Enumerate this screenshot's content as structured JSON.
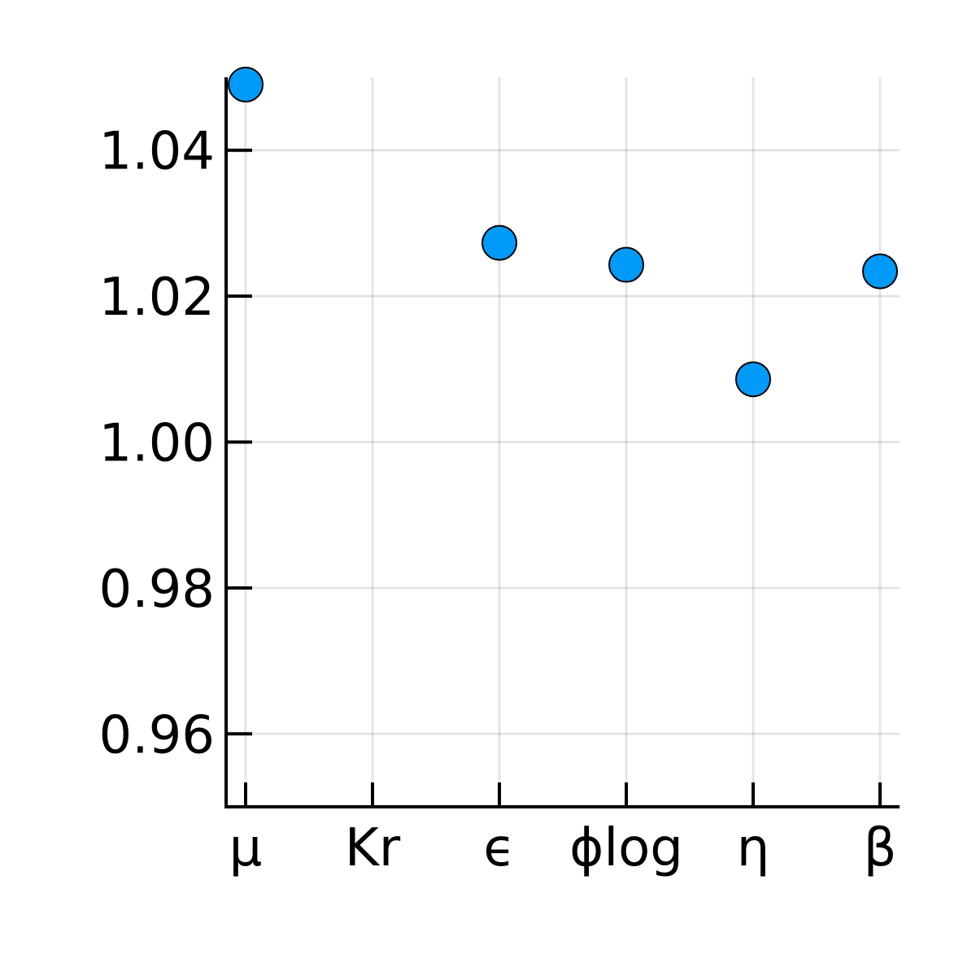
{
  "chart_data": {
    "type": "scatter",
    "title": "",
    "xlabel": "",
    "ylabel": "",
    "categories": [
      "μ",
      "Kr",
      "ϵ",
      "ϕlog",
      "η",
      "β"
    ],
    "series": [
      {
        "values": [
          1.049,
          null,
          1.0273,
          1.0243,
          1.0086,
          1.0234
        ],
        "color": "#009af9"
      }
    ],
    "ylim": [
      0.95,
      1.05
    ],
    "yticks": [
      0.96,
      0.98,
      1.0,
      1.02,
      1.04
    ],
    "ytick_labels": [
      "0.96",
      "0.98",
      "1.00",
      "1.02",
      "1.04"
    ],
    "grid": true,
    "legend": "none",
    "colors": {
      "marker_fill": "#009af9",
      "marker_stroke": "#000000",
      "axis": "#000000",
      "grid": "#e5e5e5"
    }
  }
}
